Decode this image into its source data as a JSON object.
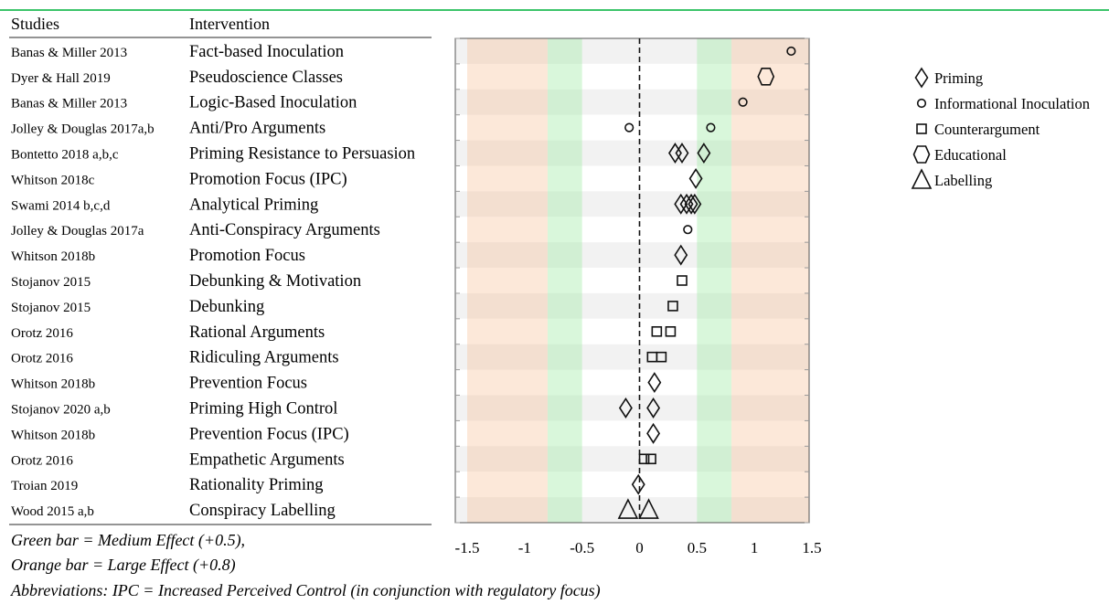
{
  "table": {
    "headers": [
      "Studies",
      "Intervention"
    ],
    "rows": [
      {
        "study": "Banas & Miller 2013",
        "intervention": "Fact-based Inoculation"
      },
      {
        "study": "Dyer & Hall 2019",
        "intervention": "Pseudoscience Classes"
      },
      {
        "study": "Banas & Miller 2013",
        "intervention": "Logic-Based Inoculation"
      },
      {
        "study": "Jolley & Douglas 2017a,b",
        "intervention": "Anti/Pro Arguments"
      },
      {
        "study": "Bontetto 2018 a,b,c",
        "intervention": "Priming Resistance to Persuasion"
      },
      {
        "study": "Whitson 2018c",
        "intervention": "Promotion Focus (IPC)"
      },
      {
        "study": "Swami 2014 b,c,d",
        "intervention": "Analytical Priming"
      },
      {
        "study": "Jolley & Douglas 2017a",
        "intervention": "Anti-Conspiracy Arguments"
      },
      {
        "study": "Whitson 2018b",
        "intervention": "Promotion Focus"
      },
      {
        "study": "Stojanov 2015",
        "intervention": "Debunking & Motivation"
      },
      {
        "study": "Stojanov 2015",
        "intervention": "Debunking"
      },
      {
        "study": "Orotz 2016",
        "intervention": "Rational Arguments"
      },
      {
        "study": "Orotz 2016",
        "intervention": "Ridiculing Arguments"
      },
      {
        "study": "Whitson 2018b",
        "intervention": "Prevention Focus"
      },
      {
        "study": "Stojanov 2020 a,b",
        "intervention": "Priming High Control"
      },
      {
        "study": "Whitson 2018b",
        "intervention": "Prevention Focus (IPC)"
      },
      {
        "study": "Orotz 2016",
        "intervention": "Empathetic Arguments"
      },
      {
        "study": "Troian 2019",
        "intervention": "Rationality Priming"
      },
      {
        "study": "Wood 2015 a,b",
        "intervention": "Conspiracy Labelling"
      }
    ]
  },
  "notes": [
    "Green bar = Medium Effect (+0.5),",
    "Orange bar = Large Effect (+0.8)",
    "Abbreviations: IPC = Increased Perceived Control (in conjunction with regulatory focus)"
  ],
  "chart_data": {
    "type": "scatter",
    "xlim": [
      -1.5,
      1.5
    ],
    "x_ticks": [
      -1.5,
      -1,
      -0.5,
      0,
      0.5,
      1,
      1.5
    ],
    "x_tick_labels": [
      "-1.5",
      "-1",
      "-0.5",
      "0",
      "0.5",
      "1",
      "1.5"
    ],
    "reference_line_x": 0,
    "medium_effect_bands": [
      [
        -0.8,
        -0.5
      ],
      [
        0.5,
        0.8
      ]
    ],
    "large_effect_bands": [
      [
        -1.5,
        -0.8
      ],
      [
        0.8,
        1.5
      ]
    ],
    "legend_position": "right",
    "legend": [
      {
        "marker": "diamond",
        "label": "Priming"
      },
      {
        "marker": "circle",
        "label": "Informational Inoculation"
      },
      {
        "marker": "square",
        "label": "Counterargument"
      },
      {
        "marker": "hexagon",
        "label": "Educational"
      },
      {
        "marker": "triangle",
        "label": "Labelling"
      }
    ],
    "rows": [
      {
        "points": [
          {
            "x": 1.32,
            "marker": "circle"
          }
        ]
      },
      {
        "points": [
          {
            "x": 1.1,
            "marker": "hexagon"
          }
        ]
      },
      {
        "points": [
          {
            "x": 0.9,
            "marker": "circle"
          }
        ]
      },
      {
        "points": [
          {
            "x": -0.09,
            "marker": "circle"
          },
          {
            "x": 0.62,
            "marker": "circle"
          }
        ]
      },
      {
        "points": [
          {
            "x": 0.31,
            "marker": "diamond"
          },
          {
            "x": 0.37,
            "marker": "diamond"
          },
          {
            "x": 0.56,
            "marker": "diamond"
          }
        ]
      },
      {
        "points": [
          {
            "x": 0.49,
            "marker": "diamond"
          }
        ]
      },
      {
        "points": [
          {
            "x": 0.36,
            "marker": "diamond"
          },
          {
            "x": 0.41,
            "marker": "diamond"
          },
          {
            "x": 0.45,
            "marker": "diamond"
          },
          {
            "x": 0.48,
            "marker": "diamond"
          }
        ]
      },
      {
        "points": [
          {
            "x": 0.42,
            "marker": "circle"
          }
        ]
      },
      {
        "points": [
          {
            "x": 0.36,
            "marker": "diamond"
          }
        ]
      },
      {
        "points": [
          {
            "x": 0.37,
            "marker": "square"
          }
        ]
      },
      {
        "points": [
          {
            "x": 0.29,
            "marker": "square"
          }
        ]
      },
      {
        "points": [
          {
            "x": 0.15,
            "marker": "square"
          },
          {
            "x": 0.27,
            "marker": "square"
          }
        ]
      },
      {
        "points": [
          {
            "x": 0.11,
            "marker": "square"
          },
          {
            "x": 0.19,
            "marker": "square"
          }
        ]
      },
      {
        "points": [
          {
            "x": 0.13,
            "marker": "diamond"
          }
        ]
      },
      {
        "points": [
          {
            "x": -0.12,
            "marker": "diamond"
          },
          {
            "x": 0.12,
            "marker": "diamond"
          }
        ]
      },
      {
        "points": [
          {
            "x": 0.12,
            "marker": "diamond"
          }
        ]
      },
      {
        "points": [
          {
            "x": 0.04,
            "marker": "square"
          },
          {
            "x": 0.1,
            "marker": "square"
          }
        ]
      },
      {
        "points": [
          {
            "x": -0.01,
            "marker": "diamond"
          }
        ]
      },
      {
        "points": [
          {
            "x": -0.1,
            "marker": "triangle"
          },
          {
            "x": 0.08,
            "marker": "triangle"
          }
        ]
      }
    ]
  }
}
